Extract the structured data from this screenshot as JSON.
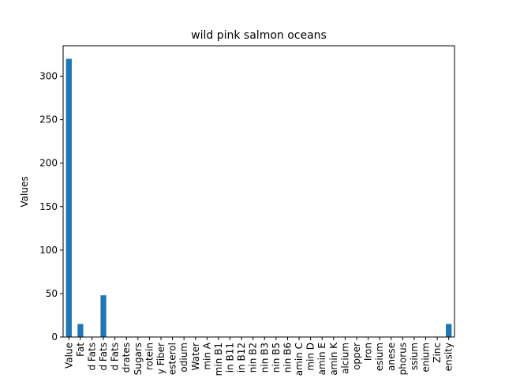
{
  "chart_data": {
    "type": "bar",
    "title": "wild pink salmon oceans",
    "xlabel": "",
    "ylabel": "Values",
    "ylim": [
      0,
      335
    ],
    "yticks": [
      0,
      50,
      100,
      150,
      200,
      250,
      300
    ],
    "grid": false,
    "legend": "none",
    "bar_color": "#1f77b4",
    "categories": [
      "Value",
      "Fat",
      "d Fats",
      "d Fats",
      "d Fats",
      "drates",
      "Sugars",
      "rotein",
      "y Fiber",
      "esterol",
      "odium",
      "Water",
      "min A",
      "min B1",
      "in B11",
      "in B12",
      "nin B2",
      "nin B3",
      "nin B5",
      "nin B6",
      "amin C",
      "min D",
      "amin E",
      "amin K",
      "alcium",
      "opper",
      "Iron",
      "esium",
      "anese",
      "phorus",
      "ssium",
      "enium",
      "Zinc",
      "ensity"
    ],
    "values": [
      320,
      15,
      0,
      48,
      0,
      0,
      0,
      0,
      0,
      0,
      0,
      0,
      0,
      0,
      0,
      0,
      0,
      0,
      0,
      0,
      0,
      0,
      0,
      0,
      0,
      0,
      0,
      0,
      0,
      0,
      0,
      0,
      0,
      15
    ]
  }
}
